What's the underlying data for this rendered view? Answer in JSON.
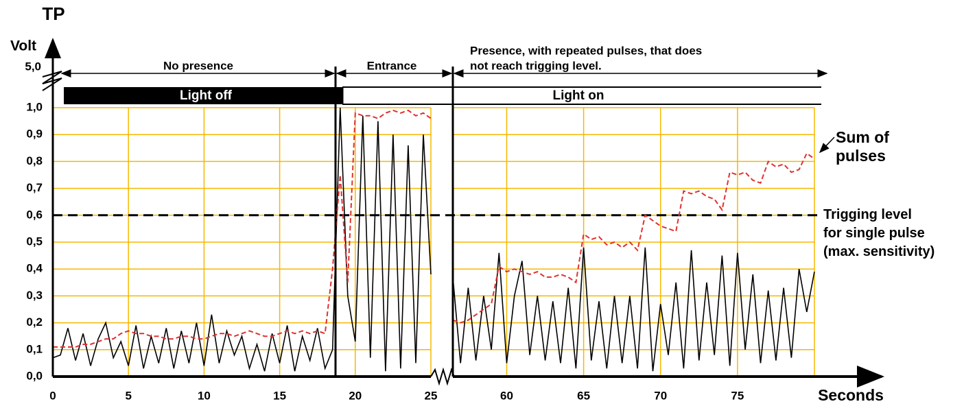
{
  "chart_data": {
    "type": "line",
    "title": "TP",
    "y_label": "Volt",
    "x_label": "Seconds",
    "y_break_label": "5,0",
    "ylim": [
      0,
      1
    ],
    "yticks": [
      {
        "value": 0,
        "label": "0,0"
      },
      {
        "value": 0.1,
        "label": "0,1"
      },
      {
        "value": 0.2,
        "label": "0,2"
      },
      {
        "value": 0.3,
        "label": "0,3"
      },
      {
        "value": 0.4,
        "label": "0,4"
      },
      {
        "value": 0.5,
        "label": "0,5"
      },
      {
        "value": 0.6,
        "label": "0,6"
      },
      {
        "value": 0.7,
        "label": "0,7"
      },
      {
        "value": 0.8,
        "label": "0,8"
      },
      {
        "value": 0.9,
        "label": "0,9"
      },
      {
        "value": 1,
        "label": "1,0"
      }
    ],
    "x_segments": [
      {
        "xlim": [
          0,
          25
        ],
        "xticks": [
          0,
          5,
          10,
          15,
          20,
          25
        ]
      },
      {
        "xlim": [
          56.5,
          80
        ],
        "xticks": [
          60,
          65,
          70,
          75
        ]
      }
    ],
    "grid": true,
    "grid_color": "#f5b800",
    "x": [
      0,
      0.5,
      1,
      1.5,
      2,
      2.5,
      3,
      3.5,
      4,
      4.5,
      5,
      5.5,
      6,
      6.5,
      7,
      7.5,
      8,
      8.5,
      9,
      9.5,
      10,
      10.5,
      11,
      11.5,
      12,
      12.5,
      13,
      13.5,
      14,
      14.5,
      15,
      15.5,
      16,
      16.5,
      17,
      17.5,
      18,
      18.5,
      19,
      19.5,
      20,
      20.5,
      21,
      21.5,
      22,
      22.5,
      23,
      23.5,
      24,
      24.5,
      25,
      56.5,
      57,
      57.5,
      58,
      58.5,
      59,
      59.5,
      60,
      60.5,
      61,
      61.5,
      62,
      62.5,
      63,
      63.5,
      64,
      64.5,
      65,
      65.5,
      66,
      66.5,
      67,
      67.5,
      68,
      68.5,
      69,
      69.5,
      70,
      70.5,
      71,
      71.5,
      72,
      72.5,
      73,
      73.5,
      74,
      74.5,
      75,
      75.5,
      76,
      76.5,
      77,
      77.5,
      78,
      78.5,
      79,
      79.5,
      80
    ],
    "series": [
      {
        "color": "#000000",
        "dashed": false,
        "values": [
          0.07,
          0.08,
          0.18,
          0.06,
          0.16,
          0.04,
          0.14,
          0.2,
          0.07,
          0.13,
          0.04,
          0.19,
          0.03,
          0.15,
          0.05,
          0.18,
          0.03,
          0.17,
          0.05,
          0.2,
          0.04,
          0.23,
          0.05,
          0.17,
          0.08,
          0.15,
          0.03,
          0.12,
          0.02,
          0.16,
          0.05,
          0.19,
          0.02,
          0.15,
          0.06,
          0.18,
          0.03,
          0.1,
          1.0,
          0.3,
          0.13,
          0.97,
          0.07,
          0.95,
          0.02,
          0.9,
          0.03,
          0.86,
          0.05,
          0.9,
          0.38,
          0.37,
          0.05,
          0.33,
          0.06,
          0.3,
          0.1,
          0.46,
          0.05,
          0.3,
          0.43,
          0.08,
          0.3,
          0.06,
          0.28,
          0.05,
          0.33,
          0.03,
          0.48,
          0.06,
          0.28,
          0.03,
          0.3,
          0.05,
          0.3,
          0.03,
          0.48,
          0.02,
          0.27,
          0.08,
          0.35,
          0.03,
          0.47,
          0.06,
          0.35,
          0.08,
          0.45,
          0.04,
          0.46,
          0.1,
          0.38,
          0.05,
          0.32,
          0.06,
          0.33,
          0.07,
          0.4,
          0.24,
          0.39
        ]
      },
      {
        "name": "Sum of pulses",
        "color": "#e03030",
        "dashed": true,
        "values": [
          0.11,
          0.11,
          0.11,
          0.11,
          0.12,
          0.12,
          0.13,
          0.14,
          0.14,
          0.16,
          0.17,
          0.16,
          0.16,
          0.15,
          0.15,
          0.14,
          0.14,
          0.15,
          0.15,
          0.14,
          0.14,
          0.15,
          0.16,
          0.16,
          0.15,
          0.16,
          0.17,
          0.16,
          0.15,
          0.15,
          0.16,
          0.17,
          0.16,
          0.17,
          0.16,
          0.17,
          0.16,
          0.4,
          0.75,
          0.35,
          0.98,
          0.97,
          0.97,
          0.96,
          0.98,
          0.99,
          0.98,
          0.99,
          0.97,
          0.98,
          0.96,
          0.21,
          0.2,
          0.21,
          0.23,
          0.25,
          0.27,
          0.41,
          0.39,
          0.4,
          0.39,
          0.38,
          0.39,
          0.37,
          0.37,
          0.38,
          0.37,
          0.35,
          0.53,
          0.51,
          0.52,
          0.49,
          0.5,
          0.48,
          0.5,
          0.47,
          0.6,
          0.58,
          0.56,
          0.55,
          0.54,
          0.69,
          0.68,
          0.69,
          0.67,
          0.66,
          0.62,
          0.76,
          0.75,
          0.76,
          0.73,
          0.72,
          0.8,
          0.78,
          0.79,
          0.76,
          0.77,
          0.83,
          0.81
        ]
      }
    ],
    "threshold": {
      "value": 0.6,
      "label_lines": [
        "Trigging level",
        "for single pulse",
        "(max. sensitivity)"
      ]
    },
    "phases": [
      "No presence",
      "Entrance",
      [
        "Presence, with repeated pulses, that does",
        "not reach trigging level."
      ]
    ],
    "light_states": [
      "Light off",
      "Light on"
    ],
    "series_label_lines": [
      "Sum of",
      "pulses"
    ]
  }
}
